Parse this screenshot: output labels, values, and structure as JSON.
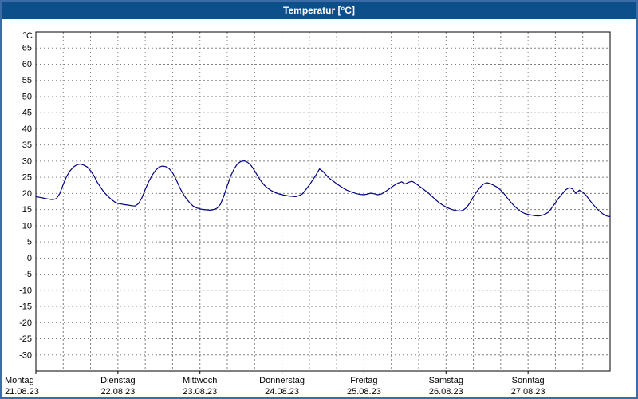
{
  "window": {
    "title": "Temperatur [°C]"
  },
  "colors": {
    "titlebar_bg": "#0d4f8b",
    "window_border": "#3b6ca8",
    "grid": "#808080",
    "axis": "#000000",
    "line": "#000080",
    "plot_bg": "#ffffff",
    "label_text": "#000000"
  },
  "chart_data": {
    "type": "line",
    "title": "Temperatur [°C]",
    "unit_label": "°C",
    "ylim": [
      -35,
      70
    ],
    "y_ticks": [
      65,
      60,
      55,
      50,
      45,
      40,
      35,
      30,
      25,
      20,
      15,
      10,
      5,
      0,
      -5,
      -10,
      -15,
      -20,
      -25,
      -30
    ],
    "x_hours_total": 168,
    "x_grid_step_hours": 8,
    "grid": true,
    "legend_position": "none",
    "x_days": [
      {
        "name": "Montag",
        "date": "21.08.23"
      },
      {
        "name": "Dienstag",
        "date": "22.08.23"
      },
      {
        "name": "Mittwoch",
        "date": "23.08.23"
      },
      {
        "name": "Donnerstag",
        "date": "24.08.23"
      },
      {
        "name": "Freitag",
        "date": "25.08.23"
      },
      {
        "name": "Samstag",
        "date": "26.08.23"
      },
      {
        "name": "Sonntag",
        "date": "27.08.23"
      }
    ],
    "series": [
      {
        "name": "Temperatur",
        "color": "#000080",
        "sample_interval_hours": 1,
        "values": [
          19.0,
          18.8,
          18.6,
          18.4,
          18.2,
          18.1,
          18.4,
          20.0,
          22.8,
          25.3,
          27.0,
          28.2,
          28.9,
          29.1,
          28.8,
          28.2,
          27.0,
          25.4,
          23.4,
          21.8,
          20.3,
          19.2,
          18.2,
          17.4,
          16.9,
          16.7,
          16.5,
          16.4,
          16.2,
          16.1,
          16.8,
          18.6,
          21.2,
          23.6,
          25.6,
          27.1,
          28.1,
          28.5,
          28.3,
          27.7,
          26.4,
          24.4,
          22.0,
          20.0,
          18.4,
          17.1,
          16.1,
          15.5,
          15.2,
          15.0,
          14.9,
          14.8,
          15.0,
          15.4,
          16.6,
          19.2,
          22.4,
          25.4,
          27.6,
          29.2,
          29.9,
          30.1,
          29.6,
          28.6,
          27.0,
          25.2,
          23.6,
          22.4,
          21.5,
          20.8,
          20.3,
          19.9,
          19.6,
          19.4,
          19.2,
          19.1,
          19.0,
          19.3,
          19.9,
          21.2,
          22.6,
          24.2,
          25.8,
          27.6,
          26.8,
          25.6,
          24.6,
          23.8,
          23.0,
          22.3,
          21.6,
          21.0,
          20.6,
          20.2,
          19.9,
          19.7,
          19.6,
          19.8,
          20.1,
          19.9,
          19.6,
          19.8,
          20.4,
          21.1,
          21.9,
          22.6,
          23.2,
          23.6,
          22.9,
          23.4,
          23.8,
          23.2,
          22.4,
          21.6,
          20.8,
          20.0,
          19.0,
          18.0,
          17.1,
          16.4,
          15.8,
          15.3,
          14.9,
          14.7,
          14.5,
          14.8,
          15.6,
          17.1,
          19.0,
          20.6,
          21.9,
          22.9,
          23.3,
          23.0,
          22.5,
          21.9,
          21.0,
          19.9,
          18.5,
          17.2,
          16.1,
          15.1,
          14.3,
          13.8,
          13.5,
          13.3,
          13.1,
          13.0,
          13.2,
          13.6,
          14.2,
          15.6,
          17.1,
          18.6,
          19.9,
          21.1,
          21.8,
          21.4,
          20.0,
          21.0,
          20.4,
          19.4,
          17.9,
          16.6,
          15.4,
          14.4,
          13.6,
          13.0,
          12.8
        ]
      }
    ]
  }
}
